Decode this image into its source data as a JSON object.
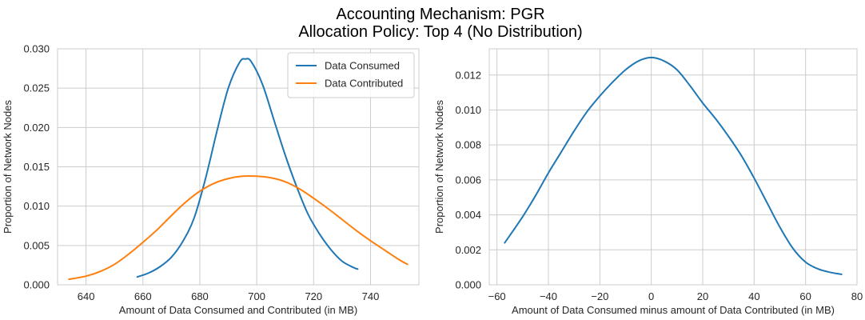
{
  "figure": {
    "title_line1": "Accounting Mechanism: PGR",
    "title_line2": "Allocation Policy: Top 4 (No Distribution)"
  },
  "chart_data": [
    {
      "type": "line",
      "xlabel": "Amount of Data Consumed and Contributed (in MB)",
      "ylabel": "Proportion of Network Nodes",
      "xlim": [
        630,
        757
      ],
      "ylim": [
        0,
        0.03
      ],
      "xticks": [
        640,
        660,
        680,
        700,
        720,
        740
      ],
      "yticks": [
        0.0,
        0.005,
        0.01,
        0.015,
        0.02,
        0.025,
        0.03
      ],
      "ytick_labels": [
        "0.000",
        "0.005",
        "0.010",
        "0.015",
        "0.020",
        "0.025",
        "0.030"
      ],
      "grid": true,
      "legend": "top-right",
      "series": [
        {
          "name": "Data Consumed",
          "color": "#1f77b4",
          "x": [
            658,
            662,
            666,
            670,
            674,
            678,
            682,
            686,
            690,
            694,
            696,
            698,
            702,
            706,
            710,
            714,
            718,
            722,
            726,
            730,
            734,
            735.5
          ],
          "y": [
            0.001,
            0.0015,
            0.0023,
            0.0035,
            0.0055,
            0.0085,
            0.0135,
            0.0195,
            0.025,
            0.0283,
            0.0287,
            0.0284,
            0.0255,
            0.021,
            0.0165,
            0.0125,
            0.009,
            0.0065,
            0.0045,
            0.003,
            0.0022,
            0.002
          ]
        },
        {
          "name": "Data Contributed",
          "color": "#ff7f0e",
          "x": [
            634,
            640,
            645,
            650,
            655,
            660,
            665,
            670,
            675,
            680,
            685,
            690,
            695,
            700,
            705,
            710,
            715,
            720,
            725,
            730,
            735,
            740,
            745,
            750,
            753
          ],
          "y": [
            0.0007,
            0.0011,
            0.0017,
            0.0026,
            0.0039,
            0.0054,
            0.007,
            0.0088,
            0.0105,
            0.0119,
            0.0129,
            0.0135,
            0.0138,
            0.0138,
            0.0136,
            0.0131,
            0.0122,
            0.011,
            0.0097,
            0.0083,
            0.0069,
            0.0056,
            0.0044,
            0.0032,
            0.0026
          ]
        }
      ]
    },
    {
      "type": "line",
      "xlabel": "Amount of Data Consumed minus amount of Data Contributed (in MB)",
      "ylabel": "Proportion of Network Nodes",
      "xlim": [
        -63,
        80
      ],
      "ylim": [
        0,
        0.0135
      ],
      "xticks": [
        -60,
        -40,
        -20,
        0,
        20,
        40,
        60,
        80
      ],
      "yticks": [
        0.0,
        0.002,
        0.004,
        0.006,
        0.008,
        0.01,
        0.012
      ],
      "ytick_labels": [
        "0.000",
        "0.002",
        "0.004",
        "0.006",
        "0.008",
        "0.010",
        "0.012"
      ],
      "grid": true,
      "series": [
        {
          "color": "#1f77b4",
          "x": [
            -57,
            -50,
            -45,
            -40,
            -35,
            -30,
            -25,
            -20,
            -15,
            -10,
            -5,
            0,
            5,
            10,
            15,
            20,
            25,
            30,
            35,
            40,
            45,
            50,
            55,
            60,
            65,
            70,
            74
          ],
          "y": [
            0.0024,
            0.0039,
            0.0051,
            0.0064,
            0.0076,
            0.0088,
            0.0099,
            0.0108,
            0.0116,
            0.0123,
            0.0128,
            0.013,
            0.0128,
            0.0123,
            0.0114,
            0.0104,
            0.0095,
            0.0085,
            0.0074,
            0.0061,
            0.0047,
            0.0033,
            0.0021,
            0.0013,
            0.0009,
            0.0007,
            0.0006
          ]
        }
      ]
    }
  ]
}
